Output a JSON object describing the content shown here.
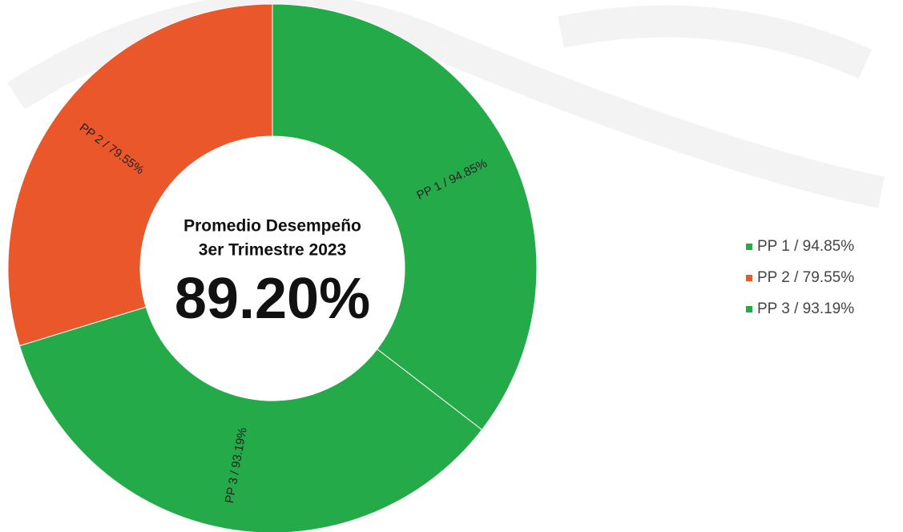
{
  "chart_data": {
    "type": "donut",
    "center_lines": [
      "Promedio Desempeño",
      "3er Trimestre 2023"
    ],
    "center_value": "89.20%",
    "labels": [
      "PP 1 / 94.85%",
      "PP 2 / 79.55%",
      "PP 3 /  93.19%"
    ],
    "values": [
      94.85,
      79.55,
      93.19
    ],
    "colors": [
      "#25aa4a",
      "#e9572b",
      "#25aa4a"
    ],
    "legend": "right"
  }
}
